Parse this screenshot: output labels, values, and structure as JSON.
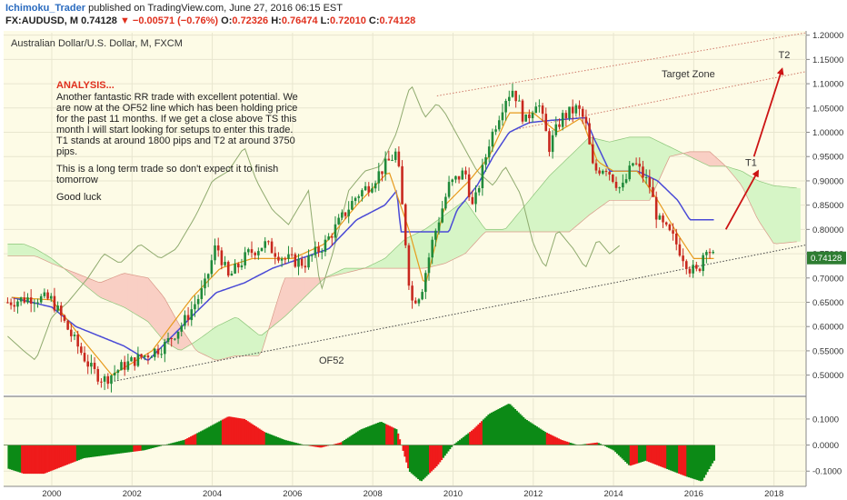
{
  "header": {
    "author": "Ichimoku_Trader",
    "published_text": "published on TradingView.com, June 27, 2016 06:15 EST",
    "symbol": "FX:AUDUSD, M",
    "price": "0.74128",
    "change": "−0.00571 (−0.76%)",
    "o_label": "O:",
    "o_value": "0.72326",
    "h_label": "H:",
    "h_value": "0.76474",
    "l_label": "L:",
    "l_value": "0.72010",
    "c_label": "C:",
    "c_value": "0.74128"
  },
  "chart_data": {
    "type": "candlestick",
    "title": "Australian Dollar/U.S. Dollar, M, FXCM",
    "y_axis": {
      "ylim": [
        0.46,
        1.205
      ],
      "ticks": [
        "0.50000",
        "0.55000",
        "0.60000",
        "0.65000",
        "0.70000",
        "0.75000",
        "0.80000",
        "0.85000",
        "0.90000",
        "0.95000",
        "1.00000",
        "1.05000",
        "1.10000",
        "1.15000",
        "1.20000"
      ]
    },
    "x_axis": {
      "xlim": [
        1998.8,
        2018.8
      ],
      "ticks": [
        "2000",
        "2002",
        "2004",
        "2006",
        "2008",
        "2010",
        "2012",
        "2014",
        "2016",
        "2018"
      ]
    },
    "last_price_label": "0.74128",
    "price_anchors": [
      [
        1998.9,
        0.65
      ],
      [
        1999.5,
        0.66
      ],
      [
        2000.0,
        0.655
      ],
      [
        2000.5,
        0.58
      ],
      [
        2001.0,
        0.51
      ],
      [
        2001.3,
        0.49
      ],
      [
        2001.8,
        0.52
      ],
      [
        2002.3,
        0.54
      ],
      [
        2002.8,
        0.56
      ],
      [
        2003.3,
        0.61
      ],
      [
        2003.8,
        0.68
      ],
      [
        2004.1,
        0.77
      ],
      [
        2004.4,
        0.7
      ],
      [
        2004.9,
        0.75
      ],
      [
        2005.3,
        0.77
      ],
      [
        2005.8,
        0.74
      ],
      [
        2006.3,
        0.73
      ],
      [
        2006.8,
        0.77
      ],
      [
        2007.2,
        0.82
      ],
      [
        2007.6,
        0.87
      ],
      [
        2007.9,
        0.89
      ],
      [
        2008.4,
        0.94
      ],
      [
        2008.6,
        0.96
      ],
      [
        2008.8,
        0.79
      ],
      [
        2008.95,
        0.65
      ],
      [
        2009.2,
        0.67
      ],
      [
        2009.5,
        0.78
      ],
      [
        2009.9,
        0.89
      ],
      [
        2010.3,
        0.92
      ],
      [
        2010.5,
        0.84
      ],
      [
        2010.9,
        0.98
      ],
      [
        2011.3,
        1.07
      ],
      [
        2011.5,
        1.09
      ],
      [
        2011.8,
        1.02
      ],
      [
        2012.1,
        1.07
      ],
      [
        2012.4,
        0.97
      ],
      [
        2012.7,
        1.03
      ],
      [
        2013.1,
        1.05
      ],
      [
        2013.3,
        1.02
      ],
      [
        2013.5,
        0.92
      ],
      [
        2013.8,
        0.93
      ],
      [
        2014.2,
        0.88
      ],
      [
        2014.5,
        0.94
      ],
      [
        2014.9,
        0.89
      ],
      [
        2015.1,
        0.82
      ],
      [
        2015.5,
        0.78
      ],
      [
        2015.9,
        0.72
      ],
      [
        2016.1,
        0.71
      ],
      [
        2016.3,
        0.77
      ],
      [
        2016.5,
        0.741
      ]
    ],
    "tenkan_anchors": [
      [
        1999.0,
        0.66
      ],
      [
        2000.0,
        0.655
      ],
      [
        2000.8,
        0.57
      ],
      [
        2001.5,
        0.5
      ],
      [
        2002.5,
        0.55
      ],
      [
        2003.5,
        0.66
      ],
      [
        2004.2,
        0.72
      ],
      [
        2005.0,
        0.74
      ],
      [
        2006.0,
        0.74
      ],
      [
        2006.8,
        0.77
      ],
      [
        2007.6,
        0.85
      ],
      [
        2008.4,
        0.92
      ],
      [
        2008.9,
        0.8
      ],
      [
        2009.3,
        0.68
      ],
      [
        2009.8,
        0.85
      ],
      [
        2010.4,
        0.9
      ],
      [
        2010.9,
        0.95
      ],
      [
        2011.4,
        1.04
      ],
      [
        2012.0,
        1.04
      ],
      [
        2012.6,
        1.0
      ],
      [
        2013.2,
        1.03
      ],
      [
        2013.6,
        0.94
      ],
      [
        2014.0,
        0.92
      ],
      [
        2014.6,
        0.92
      ],
      [
        2015.1,
        0.86
      ],
      [
        2015.6,
        0.79
      ],
      [
        2016.0,
        0.74
      ],
      [
        2016.5,
        0.74
      ]
    ],
    "kijun_anchors": [
      [
        1999.0,
        0.66
      ],
      [
        2000.0,
        0.64
      ],
      [
        2000.6,
        0.6
      ],
      [
        2001.2,
        0.58
      ],
      [
        2001.8,
        0.56
      ],
      [
        2002.4,
        0.53
      ],
      [
        2003.0,
        0.58
      ],
      [
        2003.6,
        0.63
      ],
      [
        2004.1,
        0.67
      ],
      [
        2004.8,
        0.69
      ],
      [
        2005.5,
        0.72
      ],
      [
        2006.2,
        0.74
      ],
      [
        2006.9,
        0.76
      ],
      [
        2007.6,
        0.82
      ],
      [
        2008.3,
        0.85
      ],
      [
        2008.6,
        0.88
      ],
      [
        2008.7,
        0.795
      ],
      [
        2009.9,
        0.795
      ],
      [
        2010.1,
        0.84
      ],
      [
        2010.6,
        0.89
      ],
      [
        2011.0,
        0.95
      ],
      [
        2011.4,
        1.0
      ],
      [
        2011.9,
        1.02
      ],
      [
        2012.5,
        1.025
      ],
      [
        2013.3,
        1.03
      ],
      [
        2013.5,
        0.99
      ],
      [
        2013.9,
        0.92
      ],
      [
        2014.6,
        0.92
      ],
      [
        2015.1,
        0.9
      ],
      [
        2015.6,
        0.86
      ],
      [
        2015.9,
        0.82
      ],
      [
        2016.5,
        0.82
      ]
    ],
    "chikou_anchors": [
      [
        1998.9,
        0.58
      ],
      [
        1999.3,
        0.55
      ],
      [
        1999.6,
        0.53
      ],
      [
        2000.0,
        0.62
      ],
      [
        2000.4,
        0.65
      ],
      [
        2000.9,
        0.7
      ],
      [
        2001.3,
        0.75
      ],
      [
        2001.7,
        0.73
      ],
      [
        2002.2,
        0.77
      ],
      [
        2002.7,
        0.74
      ],
      [
        2003.1,
        0.76
      ],
      [
        2003.6,
        0.83
      ],
      [
        2004.0,
        0.9
      ],
      [
        2004.4,
        0.92
      ],
      [
        2004.8,
        0.97
      ],
      [
        2005.1,
        0.9
      ],
      [
        2005.5,
        0.84
      ],
      [
        2005.9,
        0.81
      ],
      [
        2006.4,
        0.88
      ],
      [
        2006.7,
        0.67
      ],
      [
        2007.0,
        0.75
      ],
      [
        2007.4,
        0.88
      ],
      [
        2007.8,
        0.92
      ],
      [
        2008.2,
        0.93
      ],
      [
        2008.6,
        1.0
      ],
      [
        2008.8,
        1.06
      ],
      [
        2008.95,
        1.1
      ],
      [
        2009.3,
        1.03
      ],
      [
        2009.6,
        1.06
      ],
      [
        2009.8,
        1.04
      ],
      [
        2010.2,
        0.98
      ],
      [
        2010.6,
        0.92
      ],
      [
        2011.0,
        0.89
      ],
      [
        2011.3,
        0.93
      ],
      [
        2011.7,
        0.87
      ],
      [
        2012.0,
        0.77
      ],
      [
        2012.3,
        0.72
      ],
      [
        2012.6,
        0.8
      ],
      [
        2013.0,
        0.76
      ],
      [
        2013.3,
        0.72
      ],
      [
        2013.6,
        0.78
      ],
      [
        2013.9,
        0.75
      ],
      [
        2014.2,
        0.77
      ]
    ],
    "span_a_anchors": [
      [
        1998.9,
        0.77
      ],
      [
        1999.3,
        0.77
      ],
      [
        1999.6,
        0.76
      ],
      [
        2000.0,
        0.74
      ],
      [
        2000.6,
        0.7
      ],
      [
        2001.2,
        0.66
      ],
      [
        2001.8,
        0.64
      ],
      [
        2002.4,
        0.61
      ],
      [
        2002.8,
        0.57
      ],
      [
        2003.2,
        0.55
      ],
      [
        2003.6,
        0.57
      ],
      [
        2004.1,
        0.6
      ],
      [
        2004.6,
        0.62
      ],
      [
        2005.2,
        0.58
      ],
      [
        2005.8,
        0.62
      ],
      [
        2006.3,
        0.66
      ],
      [
        2006.8,
        0.7
      ],
      [
        2007.3,
        0.72
      ],
      [
        2007.8,
        0.72
      ],
      [
        2008.3,
        0.74
      ],
      [
        2008.8,
        0.78
      ],
      [
        2009.3,
        0.8
      ],
      [
        2009.8,
        0.83
      ],
      [
        2010.3,
        0.86
      ],
      [
        2010.8,
        0.8
      ],
      [
        2011.3,
        0.8
      ],
      [
        2011.8,
        0.85
      ],
      [
        2012.4,
        0.91
      ],
      [
        2012.9,
        0.95
      ],
      [
        2013.4,
        0.99
      ],
      [
        2013.9,
        0.98
      ],
      [
        2014.4,
        0.99
      ],
      [
        2014.9,
        0.99
      ],
      [
        2015.4,
        0.97
      ],
      [
        2015.9,
        0.95
      ],
      [
        2016.4,
        0.93
      ],
      [
        2016.8,
        0.93
      ],
      [
        2017.2,
        0.92
      ],
      [
        2017.6,
        0.9
      ],
      [
        2018.0,
        0.89
      ],
      [
        2018.6,
        0.885
      ]
    ],
    "span_b_anchors": [
      [
        1998.9,
        0.745
      ],
      [
        1999.3,
        0.745
      ],
      [
        1999.6,
        0.745
      ],
      [
        2000.0,
        0.73
      ],
      [
        2000.6,
        0.71
      ],
      [
        2001.2,
        0.69
      ],
      [
        2001.8,
        0.71
      ],
      [
        2002.4,
        0.7
      ],
      [
        2002.8,
        0.66
      ],
      [
        2003.2,
        0.6
      ],
      [
        2003.6,
        0.55
      ],
      [
        2004.1,
        0.53
      ],
      [
        2004.6,
        0.54
      ],
      [
        2005.2,
        0.54
      ],
      [
        2005.8,
        0.7
      ],
      [
        2006.3,
        0.7
      ],
      [
        2006.8,
        0.7
      ],
      [
        2007.3,
        0.71
      ],
      [
        2007.8,
        0.72
      ],
      [
        2008.3,
        0.72
      ],
      [
        2008.8,
        0.72
      ],
      [
        2009.3,
        0.72
      ],
      [
        2009.8,
        0.73
      ],
      [
        2010.3,
        0.75
      ],
      [
        2010.8,
        0.795
      ],
      [
        2011.3,
        0.795
      ],
      [
        2011.8,
        0.795
      ],
      [
        2012.4,
        0.795
      ],
      [
        2012.9,
        0.795
      ],
      [
        2013.4,
        0.83
      ],
      [
        2013.9,
        0.86
      ],
      [
        2014.4,
        0.86
      ],
      [
        2014.9,
        0.86
      ],
      [
        2015.4,
        0.95
      ],
      [
        2015.9,
        0.96
      ],
      [
        2016.4,
        0.96
      ],
      [
        2016.8,
        0.93
      ],
      [
        2017.2,
        0.89
      ],
      [
        2017.6,
        0.82
      ],
      [
        2018.0,
        0.77
      ],
      [
        2018.6,
        0.775
      ]
    ],
    "histogram_anchors": [
      [
        1998.9,
        -0.09
      ],
      [
        1999.3,
        -0.11
      ],
      [
        1999.8,
        -0.11
      ],
      [
        2000.3,
        -0.08
      ],
      [
        2000.8,
        -0.05
      ],
      [
        2001.3,
        -0.04
      ],
      [
        2001.8,
        -0.03
      ],
      [
        2002.3,
        -0.02
      ],
      [
        2002.8,
        0.0
      ],
      [
        2003.3,
        0.02
      ],
      [
        2003.8,
        0.06
      ],
      [
        2004.4,
        0.11
      ],
      [
        2004.8,
        0.1
      ],
      [
        2005.3,
        0.05
      ],
      [
        2005.8,
        0.02
      ],
      [
        2006.3,
        0.0
      ],
      [
        2006.7,
        -0.01
      ],
      [
        2007.2,
        0.01
      ],
      [
        2007.7,
        0.06
      ],
      [
        2008.2,
        0.09
      ],
      [
        2008.6,
        0.06
      ],
      [
        2008.9,
        -0.1
      ],
      [
        2009.2,
        -0.14
      ],
      [
        2009.6,
        -0.08
      ],
      [
        2010.0,
        0.0
      ],
      [
        2010.5,
        0.06
      ],
      [
        2010.9,
        0.12
      ],
      [
        2011.4,
        0.16
      ],
      [
        2011.8,
        0.1
      ],
      [
        2012.3,
        0.05
      ],
      [
        2012.7,
        0.02
      ],
      [
        2013.1,
        0.0
      ],
      [
        2013.6,
        0.01
      ],
      [
        2014.0,
        -0.02
      ],
      [
        2014.4,
        -0.08
      ],
      [
        2014.8,
        -0.06
      ],
      [
        2015.3,
        -0.09
      ],
      [
        2015.8,
        -0.12
      ],
      [
        2016.2,
        -0.14
      ],
      [
        2016.5,
        -0.06
      ]
    ],
    "histogram_red_ranges": [
      [
        1999.2,
        2000.6
      ],
      [
        2002.0,
        2002.2
      ],
      [
        2003.3,
        2003.6
      ],
      [
        2004.2,
        2005.3
      ],
      [
        2006.4,
        2007.2
      ],
      [
        2008.3,
        2008.5
      ],
      [
        2008.6,
        2008.9
      ],
      [
        2009.4,
        2009.7
      ],
      [
        2010.4,
        2010.7
      ],
      [
        2012.3,
        2012.9
      ],
      [
        2013.3,
        2013.6
      ],
      [
        2014.4,
        2014.6
      ],
      [
        2014.8,
        2015.3
      ],
      [
        2015.6,
        2015.8
      ]
    ],
    "histogram_axis": {
      "ylim": [
        -0.155,
        0.18
      ],
      "ticks": [
        "0.1000",
        "0.0000",
        "-0.1000"
      ]
    },
    "trendline": {
      "label": "OF52",
      "from": [
        2001.4,
        0.485
      ],
      "to": [
        2018.8,
        0.768
      ]
    },
    "upper_channel": [
      [
        2009.6,
        1.075
      ],
      [
        2018.8,
        1.205
      ]
    ],
    "middle_channel": [
      [
        2011.5,
        1.005
      ],
      [
        2018.8,
        1.125
      ]
    ],
    "target_zone_label": "Target Zone",
    "targets": [
      {
        "label": "T1",
        "arrow_from": [
          2016.8,
          0.8
        ],
        "arrow_to": [
          2017.6,
          0.92
        ]
      },
      {
        "label": "T2",
        "arrow_from": [
          2017.5,
          0.95
        ],
        "arrow_to": [
          2018.2,
          1.13
        ]
      }
    ],
    "analysis": {
      "heading": "ANALYSIS...",
      "lines": [
        "Another fantastic RR trade with excellent potential. We",
        "are now at the OF52 line which has been holding price",
        "for the past 11 months. If we get a close above TS this",
        "month I will start looking for setups to enter this trade.",
        "T1 stands at around 1800 pips and T2 at around 3750",
        "pips."
      ],
      "lines2": [
        "This is a long term trade so don't expect it to finish",
        "tomorrow"
      ],
      "signoff": "Good luck"
    },
    "colors": {
      "bull": "#1f8a3a",
      "bear": "#c8281e",
      "tenkan": "#e79a1c",
      "kijun": "#4a4ad6",
      "chikou": "#8faa6e",
      "cloud_green": "#d6f5c6",
      "cloud_red": "#f9cfc4",
      "hist_green": "#0c8a16",
      "hist_red": "#ef1b1b",
      "arrow": "#cc1414",
      "channel": "#cf7a6a",
      "analysis_heading": "#e0301e",
      "price_label_bg": "#2e7d32"
    }
  }
}
